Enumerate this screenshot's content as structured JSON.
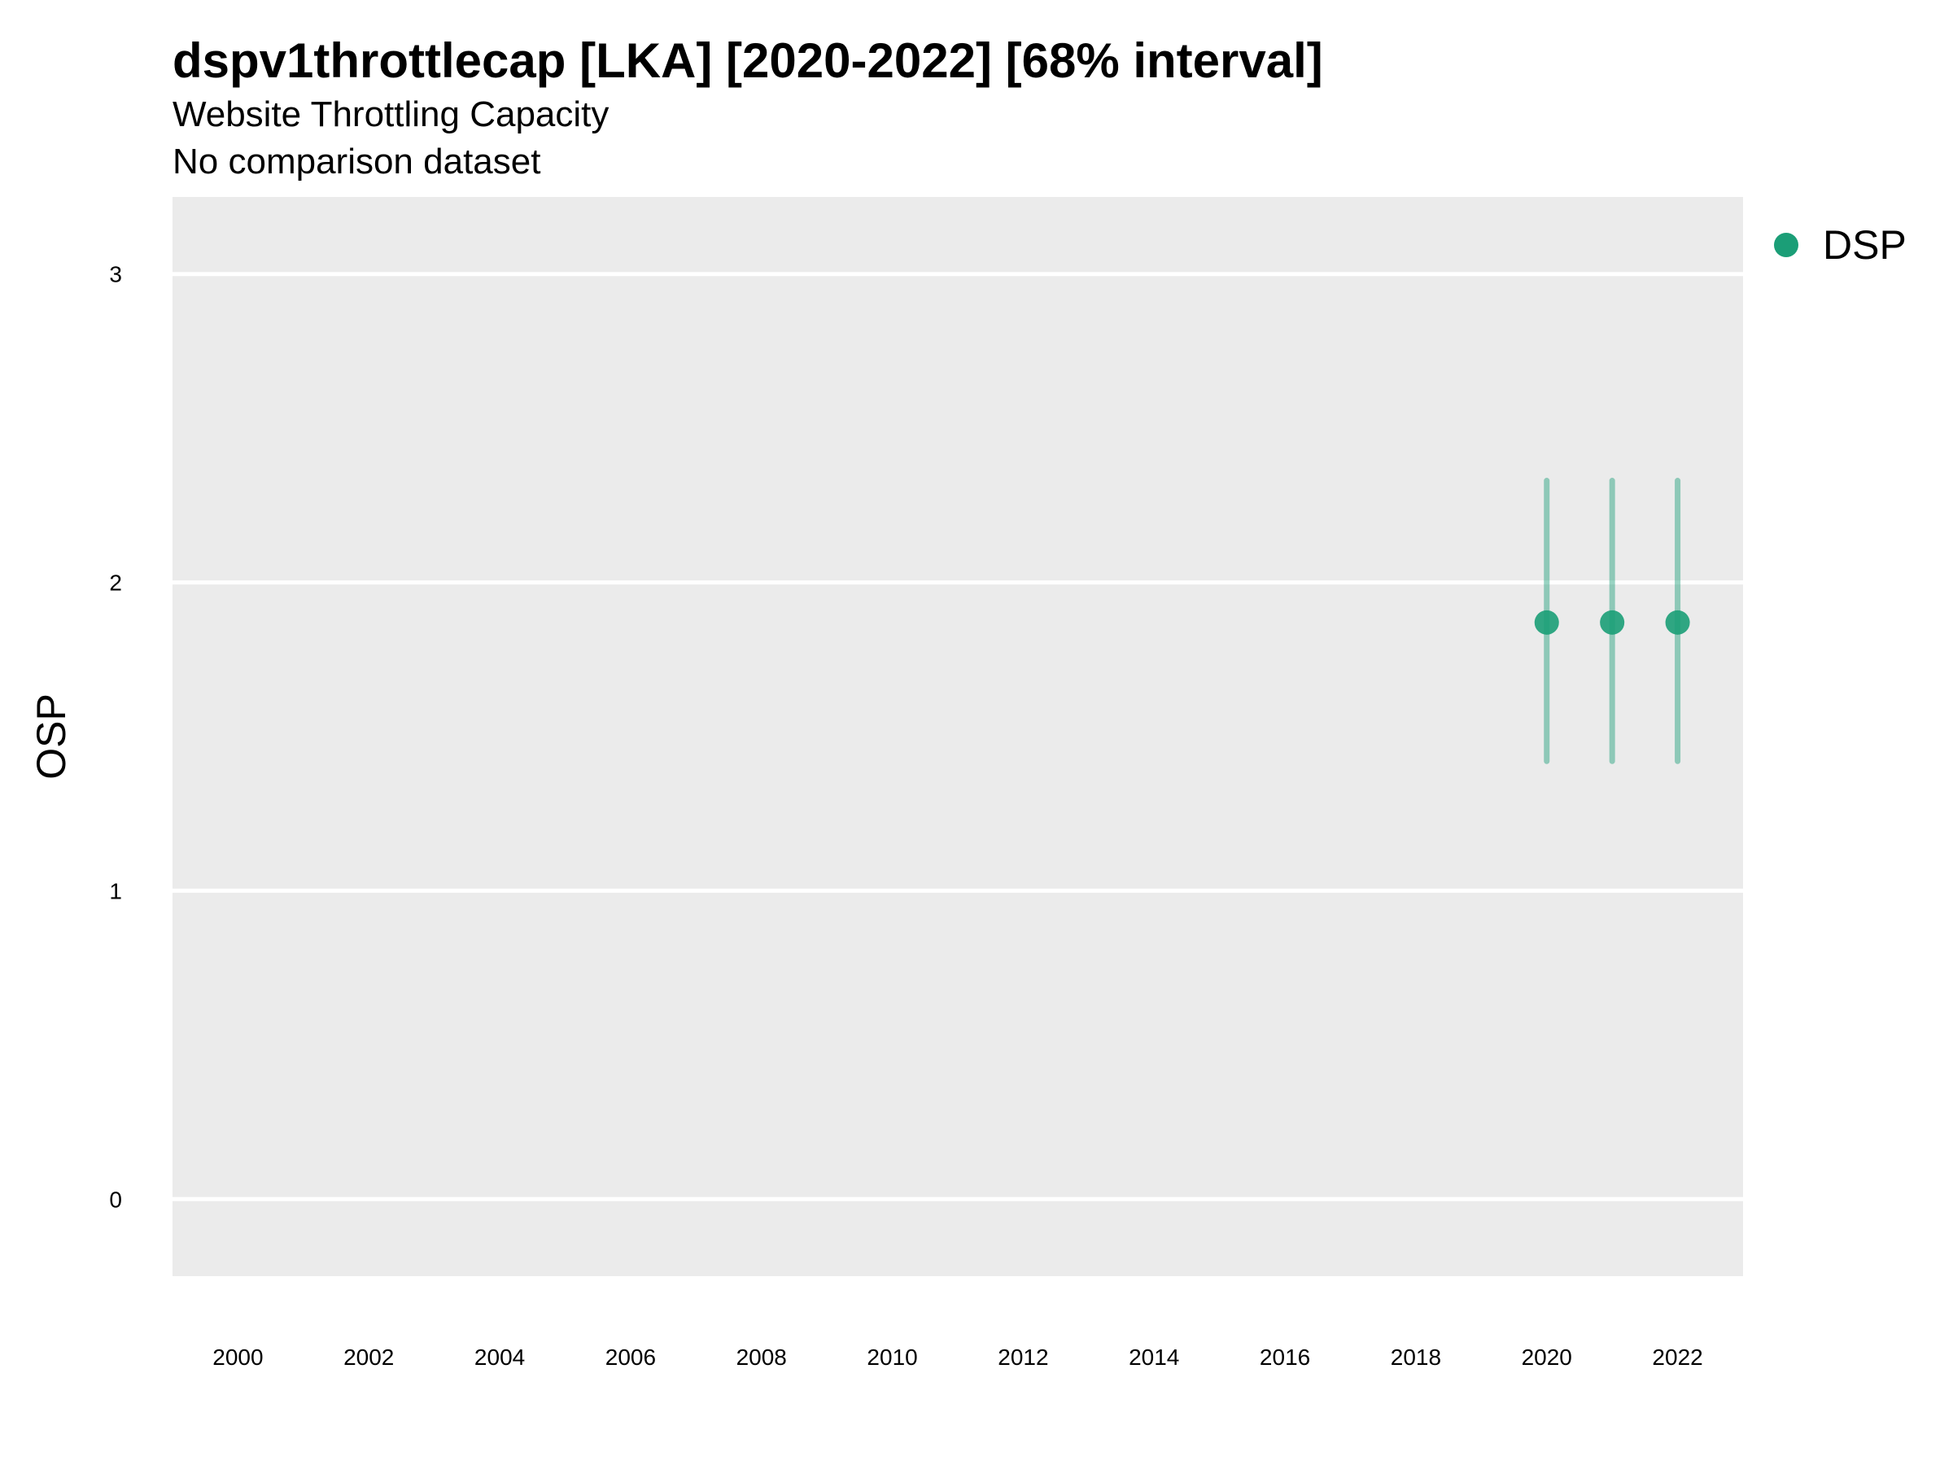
{
  "title": "dspv1throttlecap [LKA] [2020-2022] [68% interval]",
  "subtitle": "Website Throttling Capacity",
  "subtitle2": "No comparison dataset",
  "colors": {
    "panel": "#ebebeb",
    "grid": "#ffffff",
    "series": "#1b9e77"
  },
  "chart_data": {
    "type": "scatter",
    "xlabel": "",
    "ylabel": "OSP",
    "xlim": [
      1999,
      2023
    ],
    "ylim": [
      -0.25,
      3.25
    ],
    "x_ticks": [
      2000,
      2002,
      2004,
      2006,
      2008,
      2010,
      2012,
      2014,
      2016,
      2018,
      2020,
      2022
    ],
    "y_ticks": [
      0,
      1,
      2,
      3
    ],
    "grid": true,
    "legend_position": "right",
    "series": [
      {
        "name": "DSP",
        "points": [
          {
            "x": 2020,
            "y": 1.87,
            "low": 1.42,
            "high": 2.33
          },
          {
            "x": 2021,
            "y": 1.87,
            "low": 1.42,
            "high": 2.33
          },
          {
            "x": 2022,
            "y": 1.87,
            "low": 1.42,
            "high": 2.33
          }
        ]
      }
    ]
  }
}
